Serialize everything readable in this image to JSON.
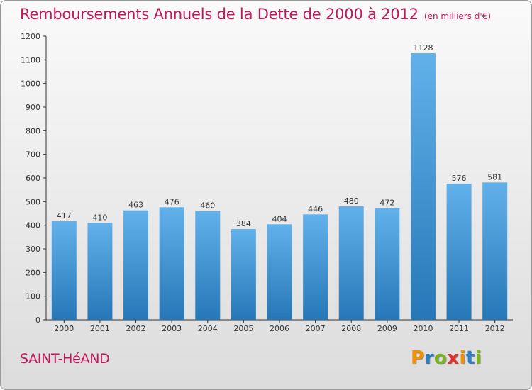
{
  "header": {
    "title": "Remboursements Annuels de la Dette de 2000 à 2012",
    "subtitle": "(en milliers d'€)"
  },
  "footer": {
    "commune": "SAINT-HéAND",
    "logo_letters": [
      "P",
      "r",
      "o",
      "x",
      "i",
      "t",
      "i"
    ],
    "logo_colors": [
      "#f39200",
      "#2a7fc9",
      "#7bb51e",
      "#e4312b",
      "#f39200",
      "#2a7fc9",
      "#7bb51e"
    ]
  },
  "colors": {
    "bar_top": "#62b1eb",
    "bar_bottom": "#2677b7",
    "axis": "#333333",
    "title": "#c2185b"
  },
  "chart_data": {
    "type": "bar",
    "title": "Remboursements Annuels de la Dette de 2000 à 2012",
    "subtitle": "(en milliers d'€)",
    "xlabel": "",
    "ylabel": "",
    "categories": [
      "2000",
      "2001",
      "2002",
      "2003",
      "2004",
      "2005",
      "2006",
      "2007",
      "2008",
      "2009",
      "2010",
      "2011",
      "2012"
    ],
    "values": [
      417,
      410,
      463,
      476,
      460,
      384,
      404,
      446,
      480,
      472,
      1128,
      576,
      581
    ],
    "ylim": [
      0,
      1200
    ],
    "yticks": [
      0,
      100,
      200,
      300,
      400,
      500,
      600,
      700,
      800,
      900,
      1000,
      1100,
      1200
    ],
    "grid": false,
    "data_labels": true
  }
}
